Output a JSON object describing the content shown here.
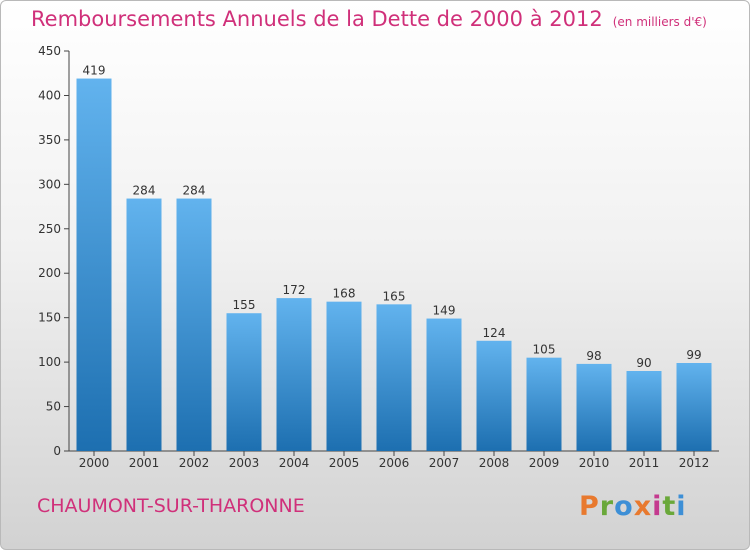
{
  "header": {
    "title": "Remboursements Annuels de la Dette de 2000 à 2012",
    "subtitle": "(en milliers d'€)"
  },
  "footer": {
    "commune": "CHAUMONT-SUR-THARONNE",
    "logo_text": "Proxiti"
  },
  "colors": {
    "title": "#d0307a",
    "bar_top": "#62b3ee",
    "bar_bottom": "#1d6fb0",
    "logo_letters": [
      "#e8792e",
      "#6aa83a",
      "#3d8fd6",
      "#e8792e",
      "#c43a8f",
      "#6aa83a",
      "#3d8fd6"
    ]
  },
  "chart_data": {
    "type": "bar",
    "title": "Remboursements Annuels de la Dette de 2000 à 2012",
    "xlabel": "",
    "ylabel": "",
    "categories": [
      "2000",
      "2001",
      "2002",
      "2003",
      "2004",
      "2005",
      "2006",
      "2007",
      "2008",
      "2009",
      "2010",
      "2011",
      "2012"
    ],
    "values": [
      419,
      284,
      284,
      155,
      172,
      168,
      165,
      149,
      124,
      105,
      98,
      90,
      99
    ],
    "yticks": [
      0,
      50,
      100,
      150,
      200,
      250,
      300,
      350,
      400,
      450
    ],
    "ylim": [
      0,
      450
    ],
    "grid": false,
    "legend": "none"
  }
}
